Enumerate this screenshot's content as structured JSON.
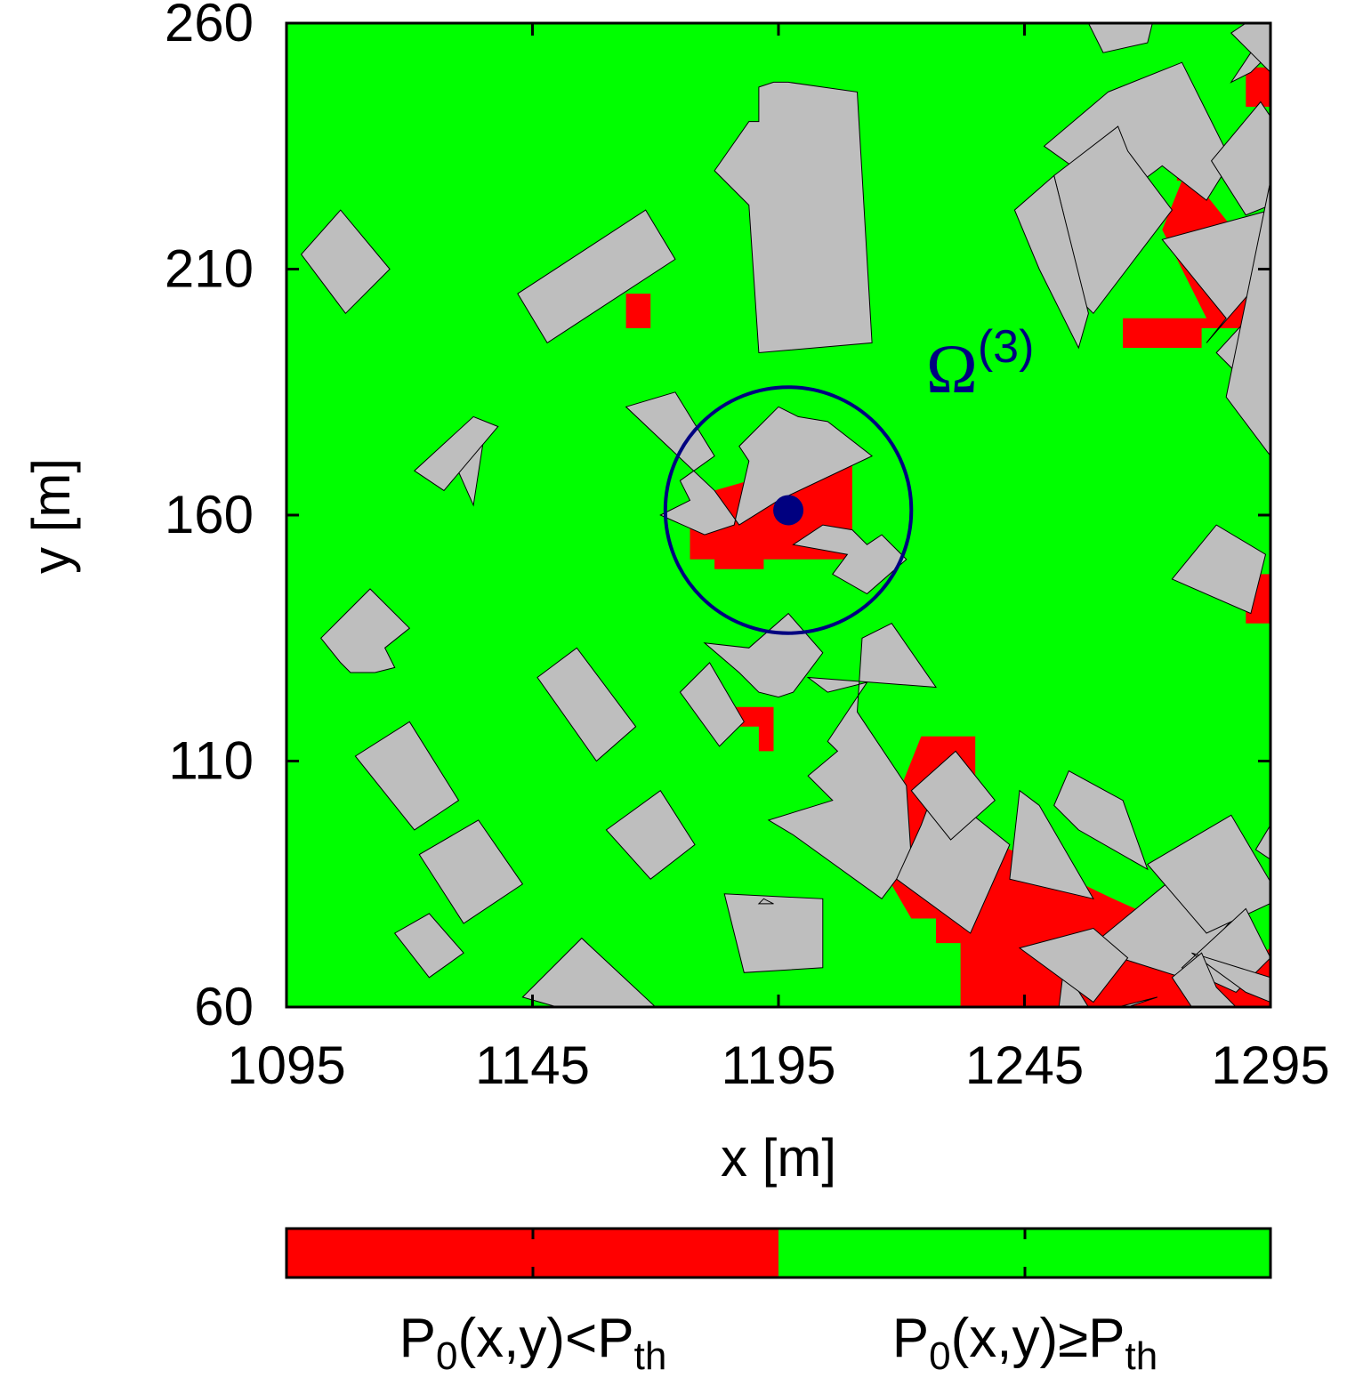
{
  "chart_data": {
    "type": "heatmap",
    "title": "",
    "xlabel": "x [m]",
    "ylabel": "y [m]",
    "xlim": [
      1095,
      1295
    ],
    "ylim": [
      60,
      260
    ],
    "x_ticks": [
      "1095",
      "1145",
      "1195",
      "1245",
      "1295"
    ],
    "y_ticks": [
      "60",
      "110",
      "160",
      "210",
      "260"
    ],
    "grid": false,
    "colors": {
      "green": "#00ff00",
      "red": "#ff0000",
      "building": "#bebebe",
      "circle": "#000080"
    },
    "background_class": "P0(x,y)≥Pth",
    "red_regions": [
      [
        [
          1164,
          198
        ],
        [
          1169,
          198
        ],
        [
          1169,
          205
        ],
        [
          1164,
          205
        ]
      ],
      [
        [
          1177,
          151
        ],
        [
          1182,
          151
        ],
        [
          1182,
          149
        ],
        [
          1192,
          149
        ],
        [
          1192,
          151
        ],
        [
          1210,
          151
        ],
        [
          1210,
          173
        ],
        [
          1182,
          165
        ],
        [
          1177,
          165
        ],
        [
          1177,
          160
        ]
      ],
      [
        [
          1186,
          121
        ],
        [
          1194,
          121
        ],
        [
          1194,
          112
        ],
        [
          1191,
          112
        ],
        [
          1191,
          117
        ],
        [
          1186,
          117
        ]
      ],
      [
        [
          1209,
          90
        ],
        [
          1214,
          90
        ],
        [
          1224,
          115
        ],
        [
          1235,
          115
        ],
        [
          1235,
          93
        ],
        [
          1240,
          93
        ],
        [
          1263,
          82
        ],
        [
          1272,
          78
        ],
        [
          1295,
          64
        ],
        [
          1295,
          60
        ],
        [
          1232,
          60
        ],
        [
          1232,
          73
        ],
        [
          1227,
          73
        ],
        [
          1227,
          78
        ],
        [
          1222,
          78
        ],
        [
          1215,
          90
        ]
      ],
      [
        [
          1258,
          60
        ],
        [
          1278,
          60
        ],
        [
          1285,
          66
        ],
        [
          1295,
          72
        ],
        [
          1295,
          60
        ]
      ],
      [
        [
          1265,
          190
        ],
        [
          1265,
          194
        ],
        [
          1281,
          194
        ],
        [
          1281,
          198
        ],
        [
          1295,
          198
        ],
        [
          1295,
          215
        ],
        [
          1290,
          215
        ],
        [
          1282,
          225
        ],
        [
          1277,
          228
        ],
        [
          1273,
          218
        ],
        [
          1282,
          200
        ],
        [
          1265,
          200
        ]
      ],
      [
        [
          1276,
          228
        ],
        [
          1283,
          228
        ],
        [
          1283,
          232
        ],
        [
          1276,
          232
        ]
      ],
      [
        [
          1290,
          243
        ],
        [
          1295,
          243
        ],
        [
          1295,
          251
        ],
        [
          1290,
          251
        ]
      ],
      [
        [
          1290,
          138
        ],
        [
          1295,
          138
        ],
        [
          1295,
          148
        ],
        [
          1290,
          148
        ]
      ]
    ],
    "buildings": [
      [
        [
          1098,
          213
        ],
        [
          1106,
          222
        ],
        [
          1116,
          210
        ],
        [
          1107,
          201
        ]
      ],
      [
        [
          1142,
          205
        ],
        [
          1168,
          222
        ],
        [
          1174,
          212
        ],
        [
          1148,
          195
        ]
      ],
      [
        [
          1182,
          230
        ],
        [
          1189,
          240
        ],
        [
          1191,
          240
        ],
        [
          1191,
          247
        ],
        [
          1194,
          248
        ],
        [
          1197,
          248
        ],
        [
          1211,
          246
        ],
        [
          1214,
          195
        ],
        [
          1191,
          193
        ],
        [
          1189,
          223
        ]
      ],
      [
        [
          1262,
          246
        ],
        [
          1277,
          252
        ],
        [
          1287,
          232
        ],
        [
          1282,
          224
        ],
        [
          1273,
          231
        ],
        [
          1265,
          225
        ],
        [
          1254,
          224
        ],
        [
          1256,
          230
        ],
        [
          1249,
          235
        ]
      ],
      [
        [
          1283,
          232
        ],
        [
          1290,
          221
        ],
        [
          1295,
          223
        ],
        [
          1295,
          241
        ],
        [
          1293,
          244
        ]
      ],
      [
        [
          1287,
          248
        ],
        [
          1295,
          260
        ],
        [
          1295,
          254
        ],
        [
          1291,
          250
        ]
      ],
      [
        [
          1282,
          195
        ],
        [
          1295,
          210
        ],
        [
          1295,
          222
        ],
        [
          1273,
          216
        ],
        [
          1286,
          200
        ]
      ],
      [
        [
          1258,
          260
        ],
        [
          1271,
          260
        ],
        [
          1270,
          256
        ],
        [
          1261,
          254
        ]
      ],
      [
        [
          1287,
          258
        ],
        [
          1295,
          250
        ],
        [
          1295,
          260
        ],
        [
          1290,
          260
        ]
      ],
      [
        [
          1251,
          229
        ],
        [
          1253,
          221
        ],
        [
          1249,
          211
        ],
        [
          1259,
          201
        ],
        [
          1275,
          222
        ],
        [
          1266,
          234
        ],
        [
          1264,
          239
        ]
      ],
      [
        [
          1256,
          194
        ],
        [
          1248,
          210
        ],
        [
          1243,
          222
        ],
        [
          1251,
          229
        ],
        [
          1258,
          201
        ]
      ],
      [
        [
          1129,
          171
        ],
        [
          1135,
          175
        ],
        [
          1133,
          162
        ]
      ],
      [
        [
          1121,
          169
        ],
        [
          1127,
          165
        ],
        [
          1138,
          178
        ],
        [
          1133,
          180
        ]
      ],
      [
        [
          1164,
          182
        ],
        [
          1174,
          185
        ],
        [
          1182,
          172
        ],
        [
          1175,
          167
        ],
        [
          1177,
          163
        ],
        [
          1171,
          160
        ],
        [
          1180,
          156
        ],
        [
          1186,
          158
        ],
        [
          1189,
          171
        ],
        [
          1187,
          174
        ],
        [
          1195,
          182
        ],
        [
          1199,
          180
        ],
        [
          1205,
          179
        ],
        [
          1214,
          172
        ],
        [
          1195,
          163
        ],
        [
          1187,
          158
        ],
        [
          1182,
          165
        ]
      ],
      [
        [
          1198,
          154
        ],
        [
          1204,
          158
        ],
        [
          1210,
          157
        ],
        [
          1213,
          154
        ],
        [
          1216,
          156
        ],
        [
          1221,
          151
        ],
        [
          1213,
          144
        ],
        [
          1206,
          148
        ],
        [
          1209,
          152
        ]
      ],
      [
        [
          1284,
          193
        ],
        [
          1295,
          205
        ],
        [
          1295,
          186
        ],
        [
          1290,
          187
        ]
      ],
      [
        [
          1275,
          147
        ],
        [
          1291,
          140
        ],
        [
          1294,
          152
        ],
        [
          1284,
          158
        ]
      ],
      [
        [
          1295,
          228
        ],
        [
          1286,
          184
        ],
        [
          1295,
          172
        ]
      ],
      [
        [
          1102,
          135
        ],
        [
          1112,
          145
        ],
        [
          1120,
          137
        ],
        [
          1115,
          133
        ],
        [
          1117,
          129
        ],
        [
          1113,
          128
        ],
        [
          1108,
          128
        ],
        [
          1106,
          130
        ]
      ],
      [
        [
          1146,
          127
        ],
        [
          1154,
          133
        ],
        [
          1166,
          117
        ],
        [
          1158,
          110
        ]
      ],
      [
        [
          1109,
          111
        ],
        [
          1120,
          118
        ],
        [
          1130,
          102
        ],
        [
          1121,
          96
        ]
      ],
      [
        [
          1122,
          91
        ],
        [
          1134,
          98
        ],
        [
          1143,
          85
        ],
        [
          1131,
          77
        ]
      ],
      [
        [
          1117,
          75
        ],
        [
          1124,
          79
        ],
        [
          1131,
          71
        ],
        [
          1124,
          66
        ]
      ],
      [
        [
          1143,
          62
        ],
        [
          1155,
          74
        ],
        [
          1170,
          60
        ],
        [
          1150,
          60
        ]
      ],
      [
        [
          1175,
          124
        ],
        [
          1181,
          130
        ],
        [
          1188,
          118
        ],
        [
          1183,
          113
        ]
      ],
      [
        [
          1180,
          134
        ],
        [
          1189,
          133
        ],
        [
          1197,
          140
        ],
        [
          1204,
          132
        ],
        [
          1198,
          124
        ],
        [
          1195,
          123
        ],
        [
          1191,
          124
        ],
        [
          1187,
          128
        ]
      ],
      [
        [
          1201,
          127
        ],
        [
          1205,
          124
        ],
        [
          1213,
          126
        ],
        [
          1205,
          114
        ],
        [
          1207,
          112
        ],
        [
          1201,
          107
        ],
        [
          1206,
          102
        ],
        [
          1193,
          98
        ],
        [
          1198,
          95
        ],
        [
          1216,
          82
        ],
        [
          1222,
          90
        ],
        [
          1221,
          105
        ],
        [
          1211,
          120
        ],
        [
          1212,
          135
        ],
        [
          1218,
          138
        ],
        [
          1227,
          125
        ]
      ],
      [
        [
          1224,
          97
        ],
        [
          1219,
          86
        ],
        [
          1234,
          75
        ],
        [
          1242,
          93
        ],
        [
          1227,
          105
        ]
      ],
      [
        [
          1222,
          104
        ],
        [
          1231,
          112
        ],
        [
          1239,
          102
        ],
        [
          1230,
          94
        ]
      ],
      [
        [
          1184,
          83
        ],
        [
          1188,
          67
        ],
        [
          1204,
          68
        ],
        [
          1204,
          82
        ]
      ],
      [
        [
          1160,
          96
        ],
        [
          1171,
          104
        ],
        [
          1178,
          93
        ],
        [
          1169,
          86
        ]
      ],
      [
        [
          1254,
          108
        ],
        [
          1265,
          102
        ],
        [
          1270,
          88
        ],
        [
          1256,
          96
        ],
        [
          1251,
          101
        ]
      ],
      [
        [
          1258,
          72
        ],
        [
          1275,
          86
        ],
        [
          1289,
          85
        ],
        [
          1290,
          81
        ],
        [
          1277,
          66
        ]
      ],
      [
        [
          1270,
          89
        ],
        [
          1287,
          99
        ],
        [
          1297,
          82
        ],
        [
          1282,
          75
        ]
      ],
      [
        [
          1277,
          68
        ],
        [
          1290,
          80
        ],
        [
          1295,
          70
        ],
        [
          1288,
          63
        ]
      ],
      [
        [
          1279,
          71
        ],
        [
          1290,
          63
        ],
        [
          1295,
          61
        ],
        [
          1295,
          66
        ]
      ],
      [
        [
          1253,
          68
        ],
        [
          1258,
          60
        ],
        [
          1252,
          60
        ]
      ],
      [
        [
          1292,
          92
        ],
        [
          1295,
          90
        ],
        [
          1295,
          97
        ]
      ],
      [
        [
          1281,
          71
        ],
        [
          1284,
          64
        ],
        [
          1288,
          60
        ],
        [
          1279,
          60
        ],
        [
          1275,
          66
        ]
      ],
      [
        [
          1264,
          60
        ],
        [
          1266,
          60
        ],
        [
          1272,
          62
        ]
      ],
      [
        [
          1244,
          72
        ],
        [
          1259,
          61
        ],
        [
          1266,
          70
        ],
        [
          1259,
          76
        ]
      ],
      [
        [
          1242,
          86
        ],
        [
          1244,
          104
        ],
        [
          1248,
          101
        ],
        [
          1259,
          82
        ]
      ],
      [
        [
          1191,
          81
        ],
        [
          1194,
          81
        ],
        [
          1192,
          82
        ]
      ]
    ],
    "circle": {
      "cx": 1197,
      "cy": 161,
      "r": 25
    },
    "point": {
      "x": 1197,
      "y": 161
    },
    "annotation": {
      "base": "Ω",
      "sup": "(3)",
      "x": 1225,
      "y": 185
    },
    "legend": [
      {
        "class": "lt",
        "color": "#ff0000",
        "p": "P",
        "sub0": "0",
        "mid": "(x,y)<P",
        "sub1": "th"
      },
      {
        "class": "ge",
        "color": "#00ff00",
        "p": "P",
        "sub0": "0",
        "mid": "(x,y)≥P",
        "sub1": "th"
      }
    ]
  }
}
